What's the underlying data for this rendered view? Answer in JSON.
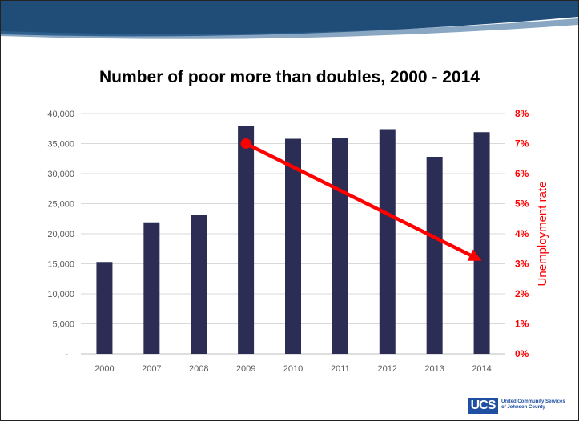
{
  "title": "Number of poor more than doubles, 2000 - 2014",
  "logo": {
    "mark": "UCS",
    "line1": "United Community Services",
    "line2": "of Johnson County"
  },
  "colors": {
    "bar": "#2b2d54",
    "arrow": "#ff0000",
    "banner": "#1f4d78",
    "grid": "#d9d9d9"
  },
  "chart_data": {
    "type": "bar",
    "categories": [
      "2000",
      "2007",
      "2008",
      "2009",
      "2010",
      "2011",
      "2012",
      "2013",
      "2014"
    ],
    "values": [
      15300,
      21900,
      23200,
      37900,
      35800,
      36000,
      37400,
      32800,
      36900
    ],
    "ylim": [
      0,
      40000
    ],
    "y_ticks": [
      "-",
      "5,000",
      "10,000",
      "15,000",
      "20,000",
      "25,000",
      "30,000",
      "35,000",
      "40,000"
    ],
    "y2label": "Unemployment rate",
    "y2lim": [
      0,
      8
    ],
    "y2_ticks": [
      "0%",
      "1%",
      "2%",
      "3%",
      "4%",
      "5%",
      "6%",
      "7%",
      "8%"
    ],
    "arrow": {
      "from": {
        "x": "2009",
        "y2": 7.0
      },
      "to": {
        "x": "2014",
        "y2": 3.1
      }
    },
    "grid": true
  }
}
